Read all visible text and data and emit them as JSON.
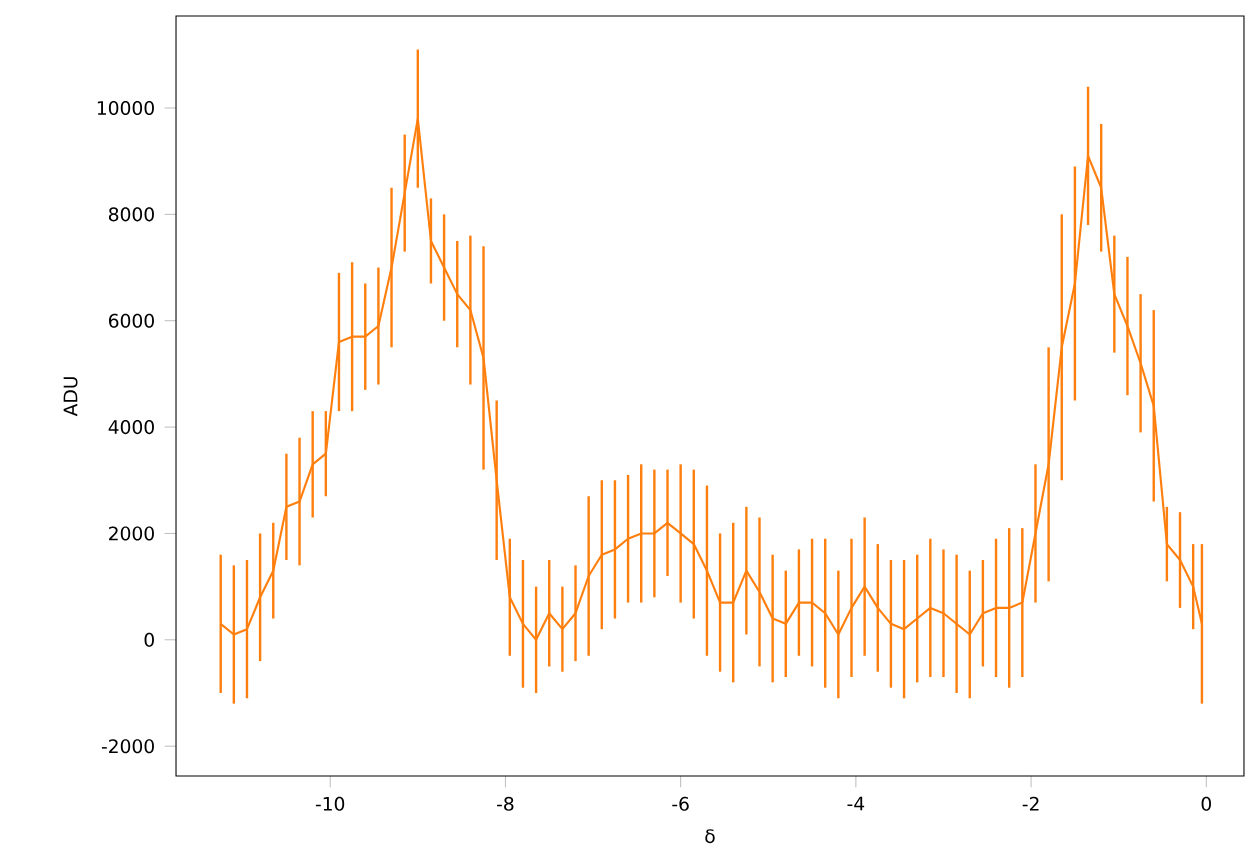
{
  "chart_data": {
    "type": "line",
    "xlabel": "δ",
    "ylabel": "ADU",
    "xlim": [
      -11.76,
      0.43
    ],
    "ylim": [
      -2560,
      11730
    ],
    "xticks": [
      -10,
      -8,
      -6,
      -4,
      -2,
      0
    ],
    "yticks": [
      -2000,
      0,
      2000,
      4000,
      6000,
      8000,
      10000
    ],
    "grid": false,
    "series": [
      {
        "color": "#ff7f0e",
        "x": [
          -11.25,
          -11.1,
          -10.95,
          -10.8,
          -10.65,
          -10.5,
          -10.35,
          -10.2,
          -10.05,
          -9.9,
          -9.75,
          -9.6,
          -9.45,
          -9.3,
          -9.15,
          -9.0,
          -8.85,
          -8.7,
          -8.55,
          -8.4,
          -8.25,
          -8.1,
          -7.95,
          -7.8,
          -7.65,
          -7.5,
          -7.35,
          -7.2,
          -7.05,
          -6.9,
          -6.75,
          -6.6,
          -6.45,
          -6.3,
          -6.15,
          -6.0,
          -5.85,
          -5.7,
          -5.55,
          -5.4,
          -5.25,
          -5.1,
          -4.95,
          -4.8,
          -4.65,
          -4.5,
          -4.35,
          -4.2,
          -4.05,
          -3.9,
          -3.75,
          -3.6,
          -3.45,
          -3.3,
          -3.15,
          -3.0,
          -2.85,
          -2.7,
          -2.55,
          -2.4,
          -2.25,
          -2.1,
          -1.95,
          -1.8,
          -1.65,
          -1.5,
          -1.35,
          -1.2,
          -1.05,
          -0.9,
          -0.75,
          -0.6,
          -0.45,
          -0.3,
          -0.15,
          -0.05
        ],
        "values": [
          300,
          100,
          200,
          800,
          1300,
          2500,
          2600,
          3300,
          3500,
          5600,
          5700,
          5700,
          5900,
          7000,
          8400,
          9800,
          7500,
          7000,
          6500,
          6200,
          5300,
          3000,
          800,
          300,
          0,
          500,
          200,
          500,
          1200,
          1600,
          1700,
          1900,
          2000,
          2000,
          2200,
          2000,
          1800,
          1300,
          700,
          700,
          1300,
          900,
          400,
          300,
          700,
          700,
          500,
          100,
          600,
          1000,
          600,
          300,
          200,
          400,
          600,
          500,
          300,
          100,
          500,
          600,
          600,
          700,
          2000,
          3300,
          5500,
          6700,
          9100,
          8500,
          6500,
          5900,
          5200,
          4400,
          1800,
          1500,
          1000,
          300
        ],
        "errors": [
          1300,
          1300,
          1300,
          1200,
          900,
          1000,
          1200,
          1000,
          800,
          1300,
          1400,
          1000,
          1100,
          1500,
          1100,
          1300,
          800,
          1000,
          1000,
          1400,
          2100,
          1500,
          1100,
          1200,
          1000,
          1000,
          800,
          900,
          1500,
          1400,
          1300,
          1200,
          1300,
          1200,
          1000,
          1300,
          1400,
          1600,
          1300,
          1500,
          1200,
          1400,
          1200,
          1000,
          1000,
          1200,
          1400,
          1200,
          1300,
          1300,
          1200,
          1200,
          1300,
          1200,
          1300,
          1200,
          1300,
          1200,
          1000,
          1300,
          1500,
          1400,
          1300,
          2200,
          2500,
          2200,
          1300,
          1200,
          1100,
          1300,
          1300,
          1800,
          700,
          900,
          800,
          1500
        ]
      }
    ]
  }
}
